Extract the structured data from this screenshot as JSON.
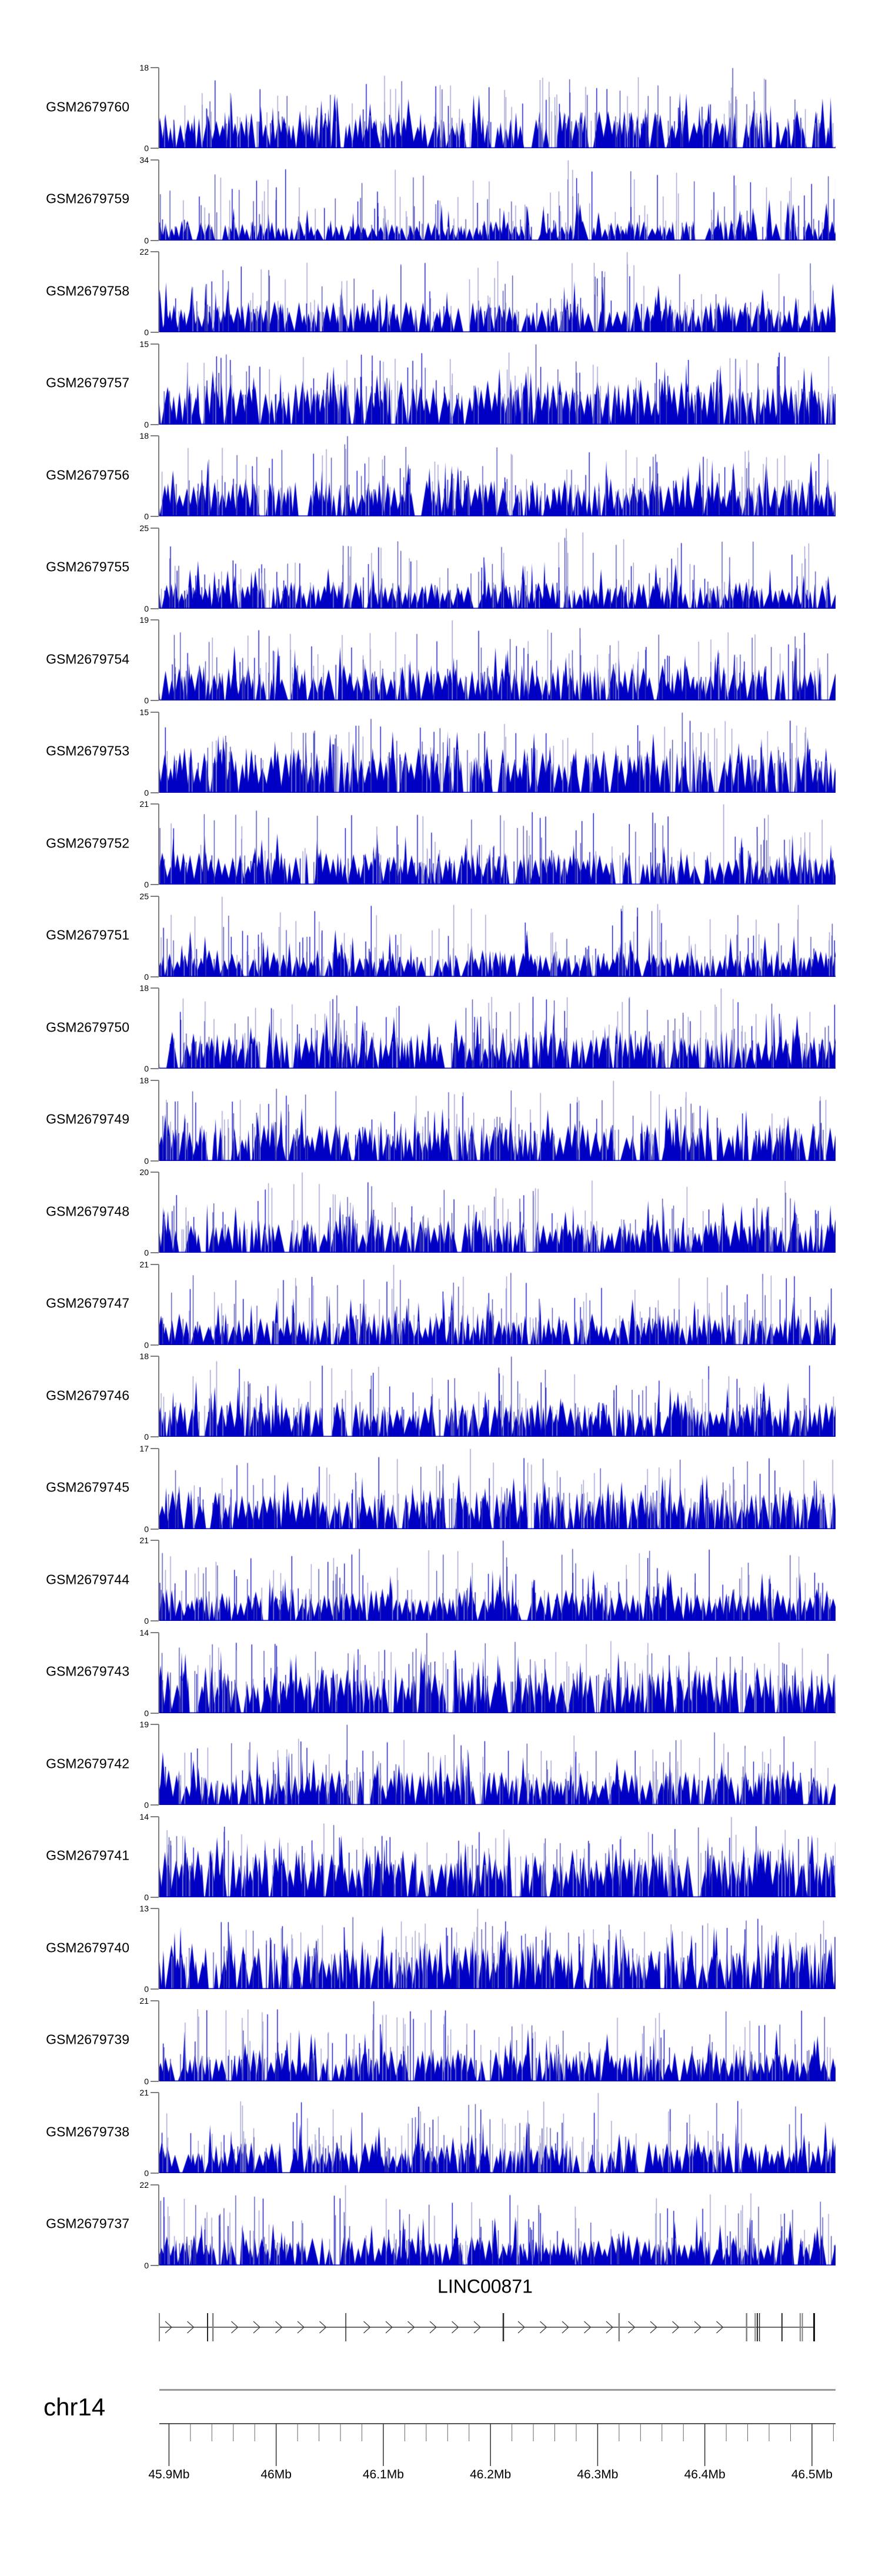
{
  "chart_data": {
    "type": "area",
    "title": "",
    "description": "Genome browser read-coverage tracks for 24 GEO samples over the LINC00871 locus on chr14; blue histogram signal per sample, gene model with rightward (plus-strand) arrows and exon bars, genomic coordinate ruler below.",
    "chromosome": "chr14",
    "x_axis": {
      "unit": "Mb",
      "range_mb": [
        45.891,
        46.522
      ],
      "major_ticks_mb": [
        45.9,
        46.0,
        46.1,
        46.2,
        46.3,
        46.4,
        46.5
      ],
      "major_tick_labels": [
        "45.9Mb",
        "46Mb",
        "46.1Mb",
        "46.2Mb",
        "46.3Mb",
        "46.4Mb",
        "46.5Mb"
      ],
      "minor_tick_interval_mb": 0.02,
      "grid": false
    },
    "y_axis_zero_label": "0",
    "tracks": [
      {
        "name": "GSM2679760",
        "ymin": 0,
        "ymax": 18
      },
      {
        "name": "GSM2679759",
        "ymin": 0,
        "ymax": 34
      },
      {
        "name": "GSM2679758",
        "ymin": 0,
        "ymax": 22
      },
      {
        "name": "GSM2679757",
        "ymin": 0,
        "ymax": 15
      },
      {
        "name": "GSM2679756",
        "ymin": 0,
        "ymax": 18
      },
      {
        "name": "GSM2679755",
        "ymin": 0,
        "ymax": 25
      },
      {
        "name": "GSM2679754",
        "ymin": 0,
        "ymax": 19
      },
      {
        "name": "GSM2679753",
        "ymin": 0,
        "ymax": 15
      },
      {
        "name": "GSM2679752",
        "ymin": 0,
        "ymax": 21
      },
      {
        "name": "GSM2679751",
        "ymin": 0,
        "ymax": 25
      },
      {
        "name": "GSM2679750",
        "ymin": 0,
        "ymax": 18
      },
      {
        "name": "GSM2679749",
        "ymin": 0,
        "ymax": 18
      },
      {
        "name": "GSM2679748",
        "ymin": 0,
        "ymax": 20
      },
      {
        "name": "GSM2679747",
        "ymin": 0,
        "ymax": 21
      },
      {
        "name": "GSM2679746",
        "ymin": 0,
        "ymax": 18
      },
      {
        "name": "GSM2679745",
        "ymin": 0,
        "ymax": 17
      },
      {
        "name": "GSM2679744",
        "ymin": 0,
        "ymax": 21
      },
      {
        "name": "GSM2679743",
        "ymin": 0,
        "ymax": 14
      },
      {
        "name": "GSM2679742",
        "ymin": 0,
        "ymax": 19
      },
      {
        "name": "GSM2679741",
        "ymin": 0,
        "ymax": 14
      },
      {
        "name": "GSM2679740",
        "ymin": 0,
        "ymax": 13
      },
      {
        "name": "GSM2679739",
        "ymin": 0,
        "ymax": 21
      },
      {
        "name": "GSM2679738",
        "ymin": 0,
        "ymax": 21
      },
      {
        "name": "GSM2679737",
        "ymin": 0,
        "ymax": 22
      }
    ],
    "gene_annotation": {
      "name": "LINC00871",
      "strand": "+",
      "start_mb": 45.891,
      "end_mb": 46.502,
      "exons": [
        {
          "mb": 45.891,
          "w": 2,
          "shade": "gray"
        },
        {
          "mb": 45.936,
          "w": 2,
          "shade": "dark"
        },
        {
          "mb": 45.941,
          "w": 2.5,
          "shade": "gray"
        },
        {
          "mb": 46.065,
          "w": 1.5,
          "shade": "dark"
        },
        {
          "mb": 46.212,
          "w": 2.5,
          "shade": "dark"
        },
        {
          "mb": 46.32,
          "w": 2.5,
          "shade": "gray"
        },
        {
          "mb": 46.439,
          "w": 2.5,
          "shade": "gray"
        },
        {
          "mb": 46.447,
          "w": 2,
          "shade": "gray"
        },
        {
          "mb": 46.449,
          "w": 2,
          "shade": "dark"
        },
        {
          "mb": 46.451,
          "w": 1.5,
          "shade": "dark"
        },
        {
          "mb": 46.472,
          "w": 2,
          "shade": "dark"
        },
        {
          "mb": 46.489,
          "w": 2,
          "shade": "gray"
        },
        {
          "mb": 46.491,
          "w": 2,
          "shade": "gray"
        },
        {
          "mb": 46.502,
          "w": 3,
          "shade": "black"
        }
      ]
    },
    "legend": null
  },
  "colors": {
    "signal_dark_blue": "#0000c4",
    "signal_mid_blue": "#4646ac",
    "signal_light_blue": "#9a9ace",
    "axis_gray": "#7f7f7f",
    "separator_gray": "#999999",
    "gene_line": "#3a3a3a",
    "exon_gray": "#808080",
    "exon_dark": "#2a2a2a",
    "exon_black": "#111111",
    "text_black": "#000000"
  }
}
